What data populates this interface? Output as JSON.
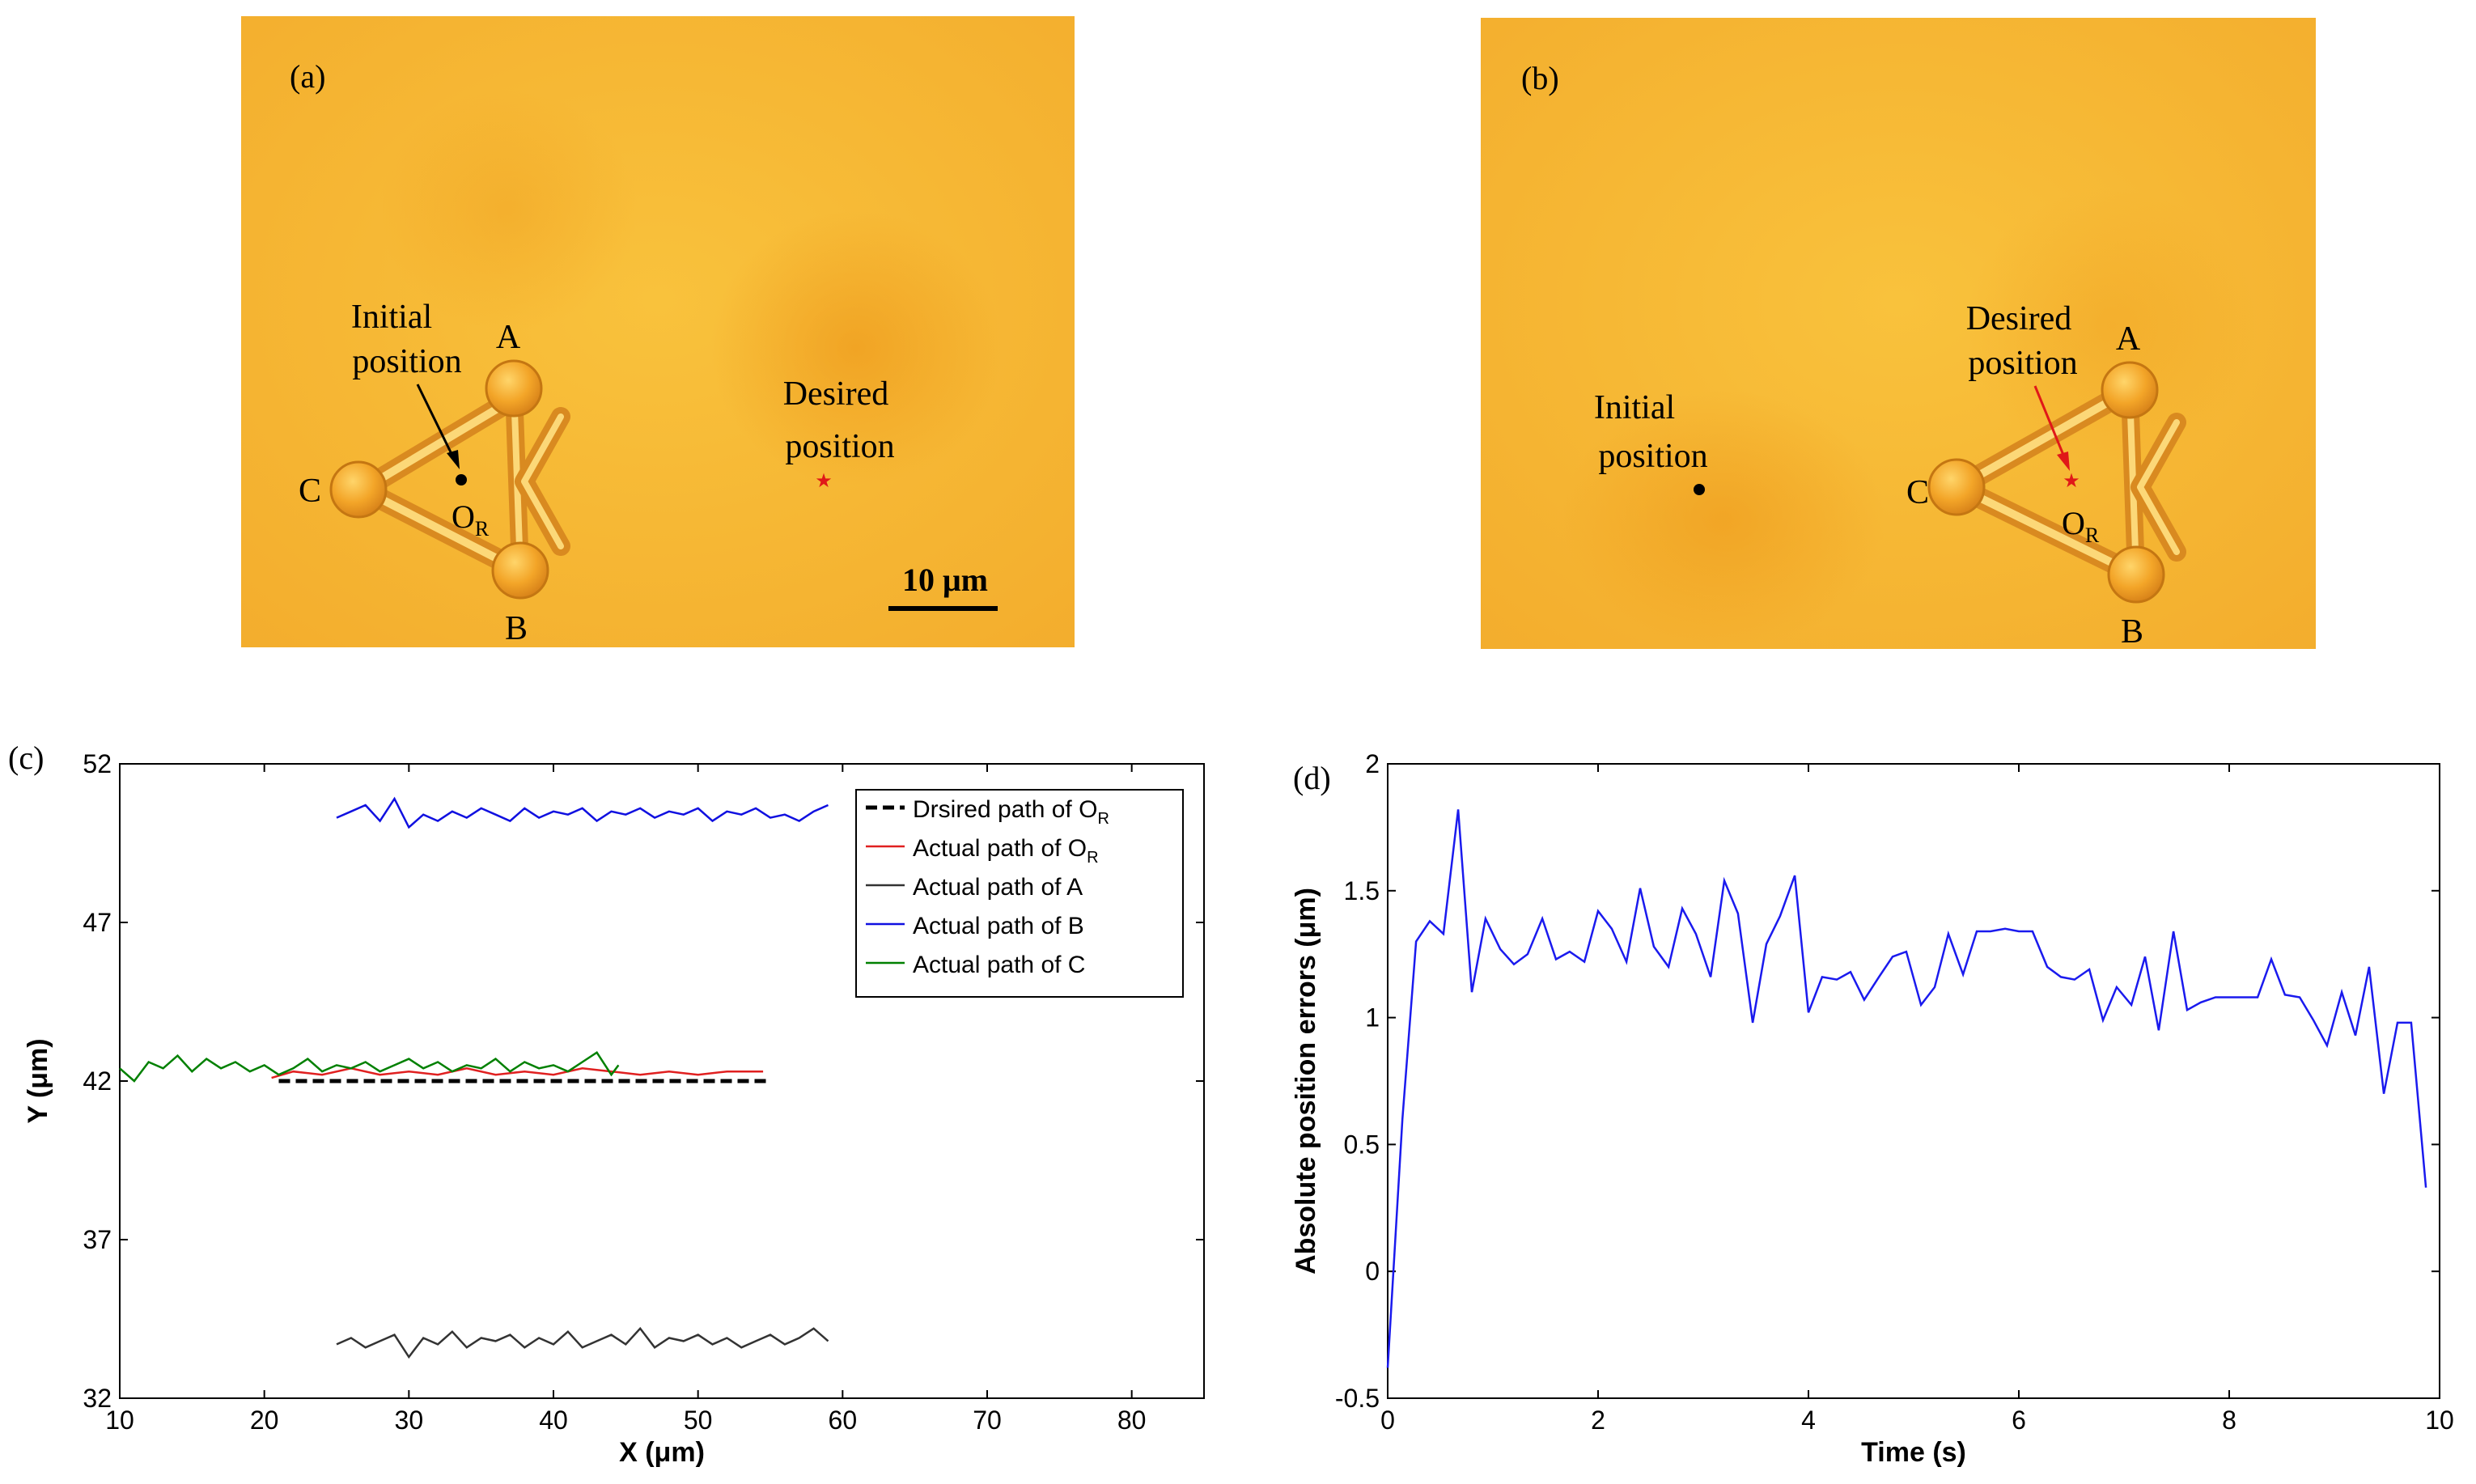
{
  "panel_a": {
    "label": "(a)",
    "initial_label_l1": "Initial",
    "initial_label_l2": "position",
    "desired_label_l1": "Desired",
    "desired_label_l2": "position",
    "node_a": "A",
    "node_b": "B",
    "node_c": "C",
    "center_label": "O",
    "center_sub": "R",
    "scale_label": "10 μm"
  },
  "panel_b": {
    "label": "(b)",
    "initial_label_l1": "Initial",
    "initial_label_l2": "position",
    "desired_label_l1": "Desired",
    "desired_label_l2": "position",
    "node_a": "A",
    "node_b": "B",
    "node_c": "C",
    "center_label": "O",
    "center_sub": "R"
  },
  "colors": {
    "micro_bg": "#f7b838",
    "desired_path": "#000000",
    "or_path": "#e02020",
    "a_path": "#333333",
    "b_path": "#1010e0",
    "c_path": "#008000",
    "error_line": "#1a1aee"
  },
  "chart_data": [
    {
      "type": "line",
      "panel_label": "(c)",
      "title": "",
      "xlabel": "X (μm)",
      "ylabel": "Y (μm)",
      "xlim": [
        10,
        85
      ],
      "ylim": [
        32,
        52
      ],
      "xticks": [
        10,
        20,
        30,
        40,
        50,
        60,
        70,
        80
      ],
      "yticks": [
        32,
        37,
        42,
        47,
        52
      ],
      "legend_position": "top-right",
      "series": [
        {
          "name": "Drsired path of O",
          "sub": "R",
          "style": "dashed",
          "x": [
            21,
            55
          ],
          "y": [
            42,
            42
          ]
        },
        {
          "name": "Actual path of O",
          "sub": "R",
          "style": "solid",
          "x": [
            20.5,
            22,
            24,
            26,
            28,
            30,
            32,
            34,
            36,
            38,
            40,
            42,
            44,
            46,
            48,
            50,
            52,
            54.5
          ],
          "y": [
            42.1,
            42.3,
            42.2,
            42.4,
            42.2,
            42.3,
            42.2,
            42.4,
            42.2,
            42.3,
            42.2,
            42.4,
            42.3,
            42.2,
            42.3,
            42.2,
            42.3,
            42.3
          ]
        },
        {
          "name": "Actual path of A",
          "style": "solid",
          "x": [
            25,
            26,
            27,
            28,
            29,
            30,
            31,
            32,
            33,
            34,
            35,
            36,
            37,
            38,
            39,
            40,
            41,
            42,
            43,
            44,
            45,
            46,
            47,
            48,
            49,
            50,
            51,
            52,
            53,
            54,
            55,
            56,
            57,
            58,
            59
          ],
          "y": [
            33.7,
            33.9,
            33.6,
            33.8,
            34.0,
            33.3,
            33.9,
            33.7,
            34.1,
            33.6,
            33.9,
            33.8,
            34.0,
            33.6,
            33.9,
            33.7,
            34.1,
            33.6,
            33.8,
            34.0,
            33.7,
            34.2,
            33.6,
            33.9,
            33.8,
            34.0,
            33.7,
            33.9,
            33.6,
            33.8,
            34.0,
            33.7,
            33.9,
            34.2,
            33.8
          ]
        },
        {
          "name": "Actual path of B",
          "style": "solid",
          "x": [
            25,
            26,
            27,
            28,
            29,
            30,
            31,
            32,
            33,
            34,
            35,
            36,
            37,
            38,
            39,
            40,
            41,
            42,
            43,
            44,
            45,
            46,
            47,
            48,
            49,
            50,
            51,
            52,
            53,
            54,
            55,
            56,
            57,
            58,
            59
          ],
          "y": [
            50.3,
            50.5,
            50.7,
            50.2,
            50.9,
            50.0,
            50.4,
            50.2,
            50.5,
            50.3,
            50.6,
            50.4,
            50.2,
            50.6,
            50.3,
            50.5,
            50.4,
            50.6,
            50.2,
            50.5,
            50.4,
            50.6,
            50.3,
            50.5,
            50.4,
            50.6,
            50.2,
            50.5,
            50.4,
            50.6,
            50.3,
            50.4,
            50.2,
            50.5,
            50.7
          ]
        },
        {
          "name": "Actual path of C",
          "style": "solid",
          "x": [
            10,
            11,
            12,
            13,
            14,
            15,
            16,
            17,
            18,
            19,
            20,
            21,
            22,
            23,
            24,
            25,
            26,
            27,
            28,
            29,
            30,
            31,
            32,
            33,
            34,
            35,
            36,
            37,
            38,
            39,
            40,
            41,
            42,
            43,
            44,
            44.5
          ],
          "y": [
            42.4,
            42.0,
            42.6,
            42.4,
            42.8,
            42.3,
            42.7,
            42.4,
            42.6,
            42.3,
            42.5,
            42.2,
            42.4,
            42.7,
            42.3,
            42.5,
            42.4,
            42.6,
            42.3,
            42.5,
            42.7,
            42.4,
            42.6,
            42.3,
            42.5,
            42.4,
            42.7,
            42.3,
            42.6,
            42.4,
            42.5,
            42.3,
            42.6,
            42.9,
            42.2,
            42.5
          ]
        }
      ]
    },
    {
      "type": "line",
      "panel_label": "(d)",
      "title": "",
      "xlabel": "Time (s)",
      "ylabel": "Absolute position errors (μm)",
      "xlim": [
        0,
        10
      ],
      "ylim": [
        -0.5,
        2
      ],
      "xticks": [
        0,
        2,
        4,
        6,
        8,
        10
      ],
      "yticks": [
        -0.5,
        0,
        0.5,
        1,
        1.5,
        2
      ],
      "series": [
        {
          "name": "Absolute position errors",
          "x": [
            0,
            0.14,
            0.27,
            0.4,
            0.53,
            0.67,
            0.8,
            0.93,
            1.07,
            1.2,
            1.33,
            1.47,
            1.6,
            1.73,
            1.87,
            2.0,
            2.13,
            2.27,
            2.4,
            2.53,
            2.67,
            2.8,
            2.93,
            3.07,
            3.2,
            3.33,
            3.47,
            3.6,
            3.73,
            3.87,
            4.0,
            4.13,
            4.27,
            4.4,
            4.53,
            4.67,
            4.8,
            4.93,
            5.07,
            5.2,
            5.33,
            5.47,
            5.6,
            5.73,
            5.87,
            6.0,
            6.13,
            6.27,
            6.4,
            6.53,
            6.67,
            6.8,
            6.93,
            7.07,
            7.2,
            7.33,
            7.47,
            7.6,
            7.73,
            7.87,
            8.0,
            8.13,
            8.27,
            8.4,
            8.53,
            8.67,
            8.8,
            8.93,
            9.07,
            9.2,
            9.33,
            9.47,
            9.6,
            9.73,
            9.87
          ],
          "y": [
            -0.38,
            0.6,
            1.3,
            1.38,
            1.33,
            1.82,
            1.1,
            1.39,
            1.27,
            1.21,
            1.25,
            1.39,
            1.23,
            1.26,
            1.22,
            1.42,
            1.35,
            1.22,
            1.51,
            1.28,
            1.2,
            1.43,
            1.33,
            1.16,
            1.54,
            1.41,
            0.98,
            1.29,
            1.4,
            1.56,
            1.02,
            1.16,
            1.15,
            1.18,
            1.07,
            1.16,
            1.24,
            1.26,
            1.05,
            1.12,
            1.33,
            1.17,
            1.34,
            1.34,
            1.35,
            1.34,
            1.34,
            1.2,
            1.16,
            1.15,
            1.19,
            0.99,
            1.12,
            1.05,
            1.24,
            0.95,
            1.34,
            1.03,
            1.06,
            1.08,
            1.08,
            1.08,
            1.08,
            1.23,
            1.09,
            1.08,
            0.99,
            0.89,
            1.1,
            0.93,
            1.2,
            0.7,
            0.98,
            0.98,
            0.33
          ]
        }
      ]
    }
  ]
}
